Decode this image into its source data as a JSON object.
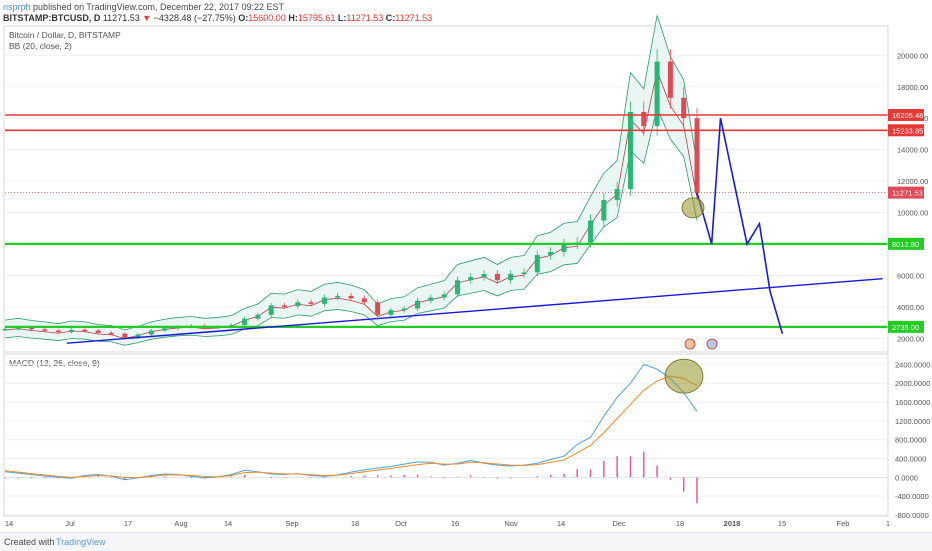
{
  "header": {
    "publisher": "nsprph",
    "published_text": "published on TradingView.com, December 22, 2017 09:22 EST",
    "symbol": "BITSTAMP:BTCUSD, D",
    "last": "11271.53",
    "change_arrow": "▼",
    "change": "−4328.48 (−27.75%)",
    "open_label": "O:",
    "open": "15600.00",
    "high_label": "H:",
    "high": "15795.61",
    "low_label": "L:",
    "low": "11271.53",
    "close_label": "C:",
    "close": "11271.53"
  },
  "chart_data": [
    {
      "type": "candlestick",
      "title": "Bitcoin / Dollar, D, BITSTAMP",
      "indicator": "BB (20, close, 2)",
      "ylim": [
        1200,
        21800
      ],
      "y_ticks": [
        "20000.00",
        "18000.00",
        "16000.00",
        "14000.00",
        "12000.00",
        "10000.00",
        "8000.00",
        "6000.00",
        "4000.00",
        "2000.00"
      ],
      "y_tick_values": [
        20000,
        18000,
        16000,
        14000,
        12000,
        10000,
        8000,
        6000,
        4000,
        2000
      ],
      "x_ticks": [
        "14",
        "Jul",
        "17",
        "Aug",
        "14",
        "Sep",
        "18",
        "Oct",
        "16",
        "Nov",
        "14",
        "Dec",
        "18",
        "2018",
        "15",
        "Feb",
        "1"
      ],
      "price_label": "11271.53",
      "horizontal_levels": [
        {
          "value": 16205.48,
          "label": "16205.48",
          "color": "#e53935"
        },
        {
          "value": 15233.85,
          "label": "15233.85",
          "color": "#e53935"
        },
        {
          "value": 8012.8,
          "label": "8012.80",
          "color": "#22cc22"
        },
        {
          "value": 2735.0,
          "label": "2735.00",
          "color": "#22cc22"
        }
      ],
      "close_series": [
        2600,
        2700,
        2580,
        2500,
        2400,
        2550,
        2500,
        2350,
        2300,
        2050,
        2250,
        2500,
        2650,
        2750,
        2800,
        2700,
        2750,
        2850,
        3250,
        3500,
        4100,
        4050,
        4300,
        4200,
        4600,
        4700,
        4550,
        4300,
        3500,
        3800,
        3900,
        4400,
        4600,
        4800,
        5700,
        5900,
        6100,
        5700,
        6100,
        6200,
        7300,
        7500,
        8000,
        8100,
        9500,
        10800,
        11500,
        16400,
        15500,
        19600,
        17300,
        16000,
        11271
      ],
      "projection": {
        "color": "#1a1ad4",
        "points": [
          [
            0.955,
            8000
          ],
          [
            0.96,
            16000
          ],
          [
            0.975,
            8000
          ],
          [
            0.982,
            9300
          ],
          [
            0.988,
            5000
          ],
          [
            0.995,
            2300
          ]
        ]
      },
      "trendline": {
        "color": "#1a1ad4",
        "from": [
          0,
          1700
        ],
        "to": [
          1.0,
          5800
        ]
      }
    },
    {
      "type": "line",
      "title": "MACD (12, 26, close, 9)",
      "ylim": [
        -800,
        2600
      ],
      "y_ticks": [
        "2400.0000",
        "2000.0000",
        "1600.0000",
        "1200.0000",
        "800.0000",
        "400.0000",
        "0.0000",
        "-400.0000",
        "-800.0000"
      ],
      "y_tick_values": [
        2400,
        2000,
        1600,
        1200,
        800,
        400,
        0,
        -400,
        -800
      ],
      "series": [
        {
          "color": "#4fa3e0",
          "values": [
            120,
            90,
            60,
            30,
            0,
            -20,
            40,
            60,
            20,
            -50,
            -10,
            40,
            70,
            60,
            20,
            -10,
            10,
            60,
            150,
            120,
            70,
            60,
            80,
            40,
            20,
            50,
            110,
            160,
            200,
            230,
            280,
            330,
            320,
            260,
            300,
            360,
            300,
            260,
            240,
            260,
            300,
            380,
            450,
            700,
            850,
            1300,
            1700,
            2000,
            2400,
            2300,
            2100,
            1800,
            1400
          ]
        },
        {
          "color": "#f08c2a",
          "values": [
            140,
            110,
            80,
            50,
            20,
            0,
            20,
            40,
            30,
            0,
            -10,
            20,
            50,
            55,
            40,
            20,
            10,
            40,
            100,
            110,
            90,
            70,
            70,
            55,
            40,
            45,
            80,
            120,
            160,
            190,
            230,
            270,
            300,
            280,
            285,
            320,
            310,
            285,
            260,
            255,
            270,
            320,
            370,
            520,
            680,
            950,
            1250,
            1550,
            1850,
            2050,
            2150,
            2100,
            1950
          ]
        }
      ],
      "histogram": {
        "color": "#e35ba6",
        "values": [
          -20,
          -20,
          -20,
          -20,
          -20,
          -20,
          20,
          20,
          -10,
          -50,
          0,
          20,
          20,
          5,
          -20,
          -30,
          0,
          20,
          50,
          10,
          -20,
          -10,
          10,
          -15,
          -20,
          5,
          30,
          40,
          40,
          40,
          50,
          60,
          20,
          -20,
          15,
          40,
          -10,
          -25,
          -20,
          5,
          30,
          60,
          80,
          180,
          170,
          350,
          450,
          450,
          550,
          250,
          -50,
          -300,
          -550
        ]
      }
    }
  ],
  "footer": {
    "created": "Created with",
    "brand": "TradingView"
  }
}
